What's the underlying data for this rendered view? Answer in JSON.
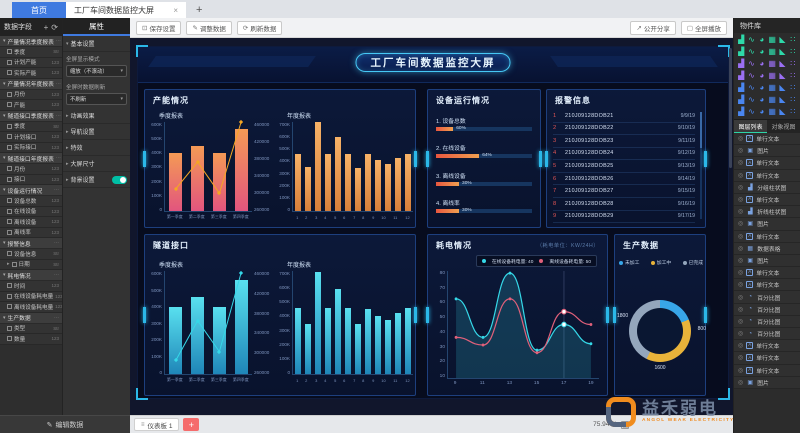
{
  "icons": {
    "close": "×",
    "add": "+",
    "refresh": "⟳",
    "save": "⊡",
    "edit": "✎",
    "share": "↗",
    "fullscreen": "▢",
    "menu": "≡",
    "fit": "▢",
    "eye": "◎",
    "dots": "⋯",
    "arrow_down": "▾",
    "arrow_right": "▸"
  },
  "tabbar": {
    "home_tab": "首页",
    "doc_tab": "工厂车间数据监控大屏"
  },
  "toolbar": {
    "save": "保存设置",
    "edit": "调整数据",
    "refresh": "刷新数据",
    "share": "公开分享",
    "fullscreen": "全屏播放"
  },
  "fields_panel": {
    "title": "数据字段",
    "edit_button": "编辑数据",
    "groups": [
      {
        "label": "产量情况季度报表",
        "fields": [
          {
            "label": "季度",
            "type": "Str"
          },
          {
            "label": "计划产能",
            "type": "123"
          },
          {
            "label": "实际产能",
            "type": "123"
          }
        ]
      },
      {
        "label": "产量情况年度报表",
        "fields": [
          {
            "label": "月份",
            "type": "123"
          },
          {
            "label": "产能",
            "type": "123"
          }
        ]
      },
      {
        "label": "隧道接口季度报表",
        "fields": [
          {
            "label": "季度",
            "type": "Str"
          },
          {
            "label": "计划接口",
            "type": "123"
          },
          {
            "label": "实际接口",
            "type": "123"
          }
        ]
      },
      {
        "label": "隧道接口年度报表",
        "fields": [
          {
            "label": "月份",
            "type": "123"
          },
          {
            "label": "接口",
            "type": "123"
          }
        ]
      },
      {
        "label": "设备运行情况",
        "fields": [
          {
            "label": "设备总数",
            "type": "123"
          },
          {
            "label": "在线设备",
            "type": "123"
          },
          {
            "label": "离线设备",
            "type": "123"
          },
          {
            "label": "离线率",
            "type": "123"
          }
        ]
      },
      {
        "label": "报警信息",
        "fields": [
          {
            "label": "设备信息",
            "type": "Str"
          },
          {
            "label": "日期",
            "type": "Str",
            "expandable": true
          }
        ]
      },
      {
        "label": "耗电情况",
        "fields": [
          {
            "label": "时间",
            "type": "123"
          },
          {
            "label": "在线设备耗电量",
            "type": "123"
          },
          {
            "label": "离线设备耗电量",
            "type": "123"
          }
        ]
      },
      {
        "label": "生产数据",
        "fields": [
          {
            "label": "类型",
            "type": "Str"
          },
          {
            "label": "数量",
            "type": "123"
          }
        ]
      }
    ]
  },
  "props_panel": {
    "tab": "属性",
    "basic_section": "基本设置",
    "display_mode_label": "全屏显示模式",
    "display_mode_value": "缩放（不滚动）",
    "refresh_label": "全屏时数据刷新",
    "refresh_value": "不刷新",
    "sections": [
      "动画效果",
      "导航设置",
      "特效",
      "大屏尺寸"
    ],
    "bg_section": "背景设置"
  },
  "canvas": {
    "zoom": "75.94 %"
  },
  "dashboard": {
    "title": "工厂车间数据监控大屏"
  },
  "panels": {
    "capacity": {
      "title": "产能情况"
    },
    "device": {
      "title": "设备运行情况",
      "rows": [
        {
          "label": "1. 设备总数",
          "value": "60%",
          "fill": 18
        },
        {
          "label": "2. 在线设备",
          "value": "64%",
          "fill": 45
        },
        {
          "label": "3. 离线设备",
          "value": "30%",
          "fill": 24
        },
        {
          "label": "4. 离线率",
          "value": "30%",
          "fill": 24
        }
      ]
    },
    "alarm": {
      "title": "报警信息",
      "rows": [
        [
          "1",
          "210J09128DOB21",
          "9/9/19"
        ],
        [
          "2",
          "210J09128DOB22",
          "9/10/19"
        ],
        [
          "3",
          "210J09128DOB23",
          "9/11/19"
        ],
        [
          "4",
          "210J09128DOB24",
          "9/12/19"
        ],
        [
          "5",
          "210J09128DOB25",
          "9/13/19"
        ],
        [
          "6",
          "210J09128DOB26",
          "9/14/19"
        ],
        [
          "7",
          "210J09128DOB27",
          "9/15/19"
        ],
        [
          "8",
          "210J09128DOB28",
          "9/16/19"
        ],
        [
          "9",
          "210J09128DOB29",
          "9/17/19"
        ]
      ]
    },
    "tunnel": {
      "title": "隧道接口"
    },
    "power": {
      "title": "耗电情况",
      "note": "（耗电单位：KW/24H）",
      "tooltip": [
        {
          "label": "在线设备耗电量: 40",
          "color": "#35d8e8"
        },
        {
          "label": "离线设备耗电量: 50",
          "color": "#e0607a"
        }
      ]
    },
    "production": {
      "title": "生产数据",
      "legend": [
        "未加工",
        "加工中",
        "已完成"
      ]
    }
  },
  "chart_data": [
    {
      "id": "quarter_capacity",
      "type": "bar",
      "title": "季度报表",
      "categories": [
        "第一季度",
        "第二季度",
        "第三季度",
        "第四季度"
      ],
      "series": [
        {
          "name": "计划产能",
          "type": "bar",
          "values": [
            390000,
            440000,
            390000,
            550000
          ],
          "color": "#e2557e"
        },
        {
          "name": "实际产能",
          "type": "line",
          "values": [
            150000,
            330000,
            120000,
            600000
          ],
          "color": "#f5a623"
        }
      ],
      "ylim": [
        0,
        600000
      ],
      "y_ticks": [
        "600K",
        "500K",
        "400K",
        "300K",
        "200K",
        "100K",
        "0"
      ],
      "y2_ticks": [
        "460000",
        "420000",
        "380000",
        "340000",
        "300000",
        "260000"
      ]
    },
    {
      "id": "annual_capacity",
      "type": "bar",
      "title": "年度报表",
      "categories": [
        "1",
        "2",
        "3",
        "4",
        "5",
        "6",
        "7",
        "8",
        "9",
        "10",
        "11",
        "12"
      ],
      "values": [
        450000,
        350000,
        700000,
        450000,
        580000,
        450000,
        340000,
        450000,
        400000,
        370000,
        420000,
        450000
      ],
      "color": "#e8924a",
      "ylim": [
        0,
        700000
      ],
      "y_ticks": [
        "700K",
        "600K",
        "500K",
        "400K",
        "300K",
        "200K",
        "100K",
        "0"
      ]
    },
    {
      "id": "quarter_interface",
      "type": "bar",
      "title": "季度报表",
      "categories": [
        "第一季度",
        "第二季度",
        "第三季度",
        "第四季度"
      ],
      "series": [
        {
          "name": "计划接口",
          "type": "bar",
          "values": [
            390000,
            450000,
            390000,
            545000
          ],
          "color": "#35b8d8"
        },
        {
          "name": "实际接口",
          "type": "line",
          "values": [
            80000,
            310000,
            130000,
            590000
          ],
          "color": "#35d8e8"
        }
      ],
      "ylim": [
        0,
        600000
      ],
      "y_ticks": [
        "600K",
        "500K",
        "400K",
        "300K",
        "200K",
        "100K",
        "0"
      ],
      "y2_ticks": [
        "460000",
        "420000",
        "380000",
        "340000",
        "300000",
        "260000"
      ]
    },
    {
      "id": "annual_interface",
      "type": "bar",
      "title": "年度报表",
      "categories": [
        "1",
        "2",
        "3",
        "4",
        "5",
        "6",
        "7",
        "8",
        "9",
        "10",
        "11",
        "12"
      ],
      "values": [
        450000,
        340000,
        690000,
        450000,
        575000,
        450000,
        340000,
        445000,
        395000,
        365000,
        415000,
        450000
      ],
      "color": "#35b8d8",
      "ylim": [
        0,
        700000
      ],
      "y_ticks": [
        "700K",
        "600K",
        "500K",
        "400K",
        "300K",
        "200K",
        "100K",
        "0"
      ]
    },
    {
      "id": "power_consumption",
      "type": "area",
      "title": "耗电情况",
      "x": [
        "9",
        "11",
        "13",
        "15",
        "17",
        "19"
      ],
      "series": [
        {
          "name": "在线设备耗电量",
          "values": [
            60,
            30,
            80,
            20,
            40,
            25
          ],
          "color": "#35d8e8"
        },
        {
          "name": "离线设备耗电量",
          "values": [
            30,
            24,
            60,
            18,
            50,
            40
          ],
          "color": "#e0607a"
        }
      ],
      "ylim": [
        0,
        80
      ],
      "y_ticks": [
        "80",
        "70",
        "60",
        "50",
        "40",
        "30",
        "20",
        "10"
      ],
      "highlight_x": "17"
    },
    {
      "id": "production_data",
      "type": "pie",
      "title": "生产数据",
      "labels": [
        "未加工",
        "加工中",
        "已完成"
      ],
      "values": [
        800,
        1600,
        1800
      ],
      "value_labels": {
        "right": "800",
        "bottom": "1600",
        "left": "1800"
      },
      "colors": [
        "#38a6e8",
        "#e8b33a",
        "#94a6bc"
      ]
    }
  ],
  "library": {
    "title": "物件库",
    "tabs": [
      "图层列表",
      "对象视图"
    ],
    "icon_rows": [
      {
        "color": "#2ed9a9",
        "icons": [
          "bar-chart-icon",
          "column-chart-icon",
          "pictorial-bar-icon",
          "histogram-icon",
          "stacked-bar-icon",
          "grouped-bar-icon"
        ]
      },
      {
        "color": "#2ed9a9",
        "icons": [
          "line-chart-icon",
          "area-chart-icon",
          "smooth-line-icon",
          "step-line-icon",
          "mixed-chart-icon",
          "radar-chart-icon"
        ]
      },
      {
        "color": "#9a6ff2",
        "icons": [
          "pie-chart-icon",
          "donut-chart-icon",
          "rose-chart-icon",
          "gauge-icon",
          "funnel-chart-icon",
          "scatter-chart-icon"
        ]
      },
      {
        "color": "#9a6ff2",
        "icons": [
          "bubble-chart-icon",
          "heatmap-icon",
          "treemap-icon",
          "sankey-chart-icon",
          "candlestick-icon",
          "boxplot-icon"
        ]
      },
      {
        "color": "#4a86f0",
        "icons": [
          "number-card-icon",
          "table-icon",
          "image-icon",
          "text-icon",
          "carousel-icon",
          "video-icon"
        ]
      },
      {
        "color": "#4a86f0",
        "icons": [
          "map-icon",
          "progress-icon",
          "percent-icon",
          "clock-icon",
          "timeline-icon",
          "iframe-icon"
        ]
      },
      {
        "color": "#4a86f0",
        "icons": [
          "decoration-icon",
          "border-icon",
          "marquee-icon",
          "tab-icon",
          "select-icon",
          "button-icon"
        ]
      }
    ],
    "layers": [
      {
        "type": "text",
        "label": "单行文本"
      },
      {
        "type": "image",
        "label": "图片"
      },
      {
        "type": "text",
        "label": "单行文本"
      },
      {
        "type": "text",
        "label": "单行文本"
      },
      {
        "type": "bar",
        "label": "分组柱状图"
      },
      {
        "type": "text",
        "label": "单行文本"
      },
      {
        "type": "bar",
        "label": "折线柱状图"
      },
      {
        "type": "image",
        "label": "图片"
      },
      {
        "type": "text",
        "label": "单行文本"
      },
      {
        "type": "table",
        "label": "数据表格"
      },
      {
        "type": "image",
        "label": "图片"
      },
      {
        "type": "text",
        "label": "单行文本"
      },
      {
        "type": "text",
        "label": "单行文本"
      },
      {
        "type": "percent",
        "label": "百分比图"
      },
      {
        "type": "percent",
        "label": "百分比图"
      },
      {
        "type": "percent",
        "label": "百分比图"
      },
      {
        "type": "percent",
        "label": "百分比图"
      },
      {
        "type": "text",
        "label": "单行文本"
      },
      {
        "type": "text",
        "label": "单行文本"
      },
      {
        "type": "text",
        "label": "单行文本"
      },
      {
        "type": "image",
        "label": "图片"
      }
    ]
  },
  "bottombar": {
    "sheet": "仪表板 1"
  },
  "watermark": {
    "cn": "益禾弱电",
    "en": "ANGOL WEAK ELECTRICITY"
  }
}
